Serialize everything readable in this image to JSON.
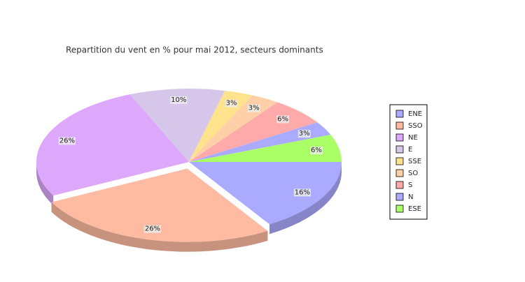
{
  "chart_data": {
    "type": "pie",
    "title": "Repartition du vent en % pour mai 2012, secteurs dominants",
    "categories": [
      "ENE",
      "SSO",
      "NE",
      "E",
      "SSE",
      "SO",
      "S",
      "N",
      "ESE"
    ],
    "values": [
      16,
      26,
      26,
      10,
      3,
      3,
      6,
      3,
      6
    ],
    "value_labels": [
      "16%",
      "26%",
      "26%",
      "10%",
      "3%",
      "3%",
      "6%",
      "3%",
      "6%"
    ],
    "colors": [
      "#aaaaff",
      "#ffbba2",
      "#dda8fc",
      "#d6c6ea",
      "#ffe28c",
      "#ffd0a8",
      "#ffaaaa",
      "#aaaaff",
      "#aaff66"
    ],
    "exploded": [
      1
    ]
  }
}
